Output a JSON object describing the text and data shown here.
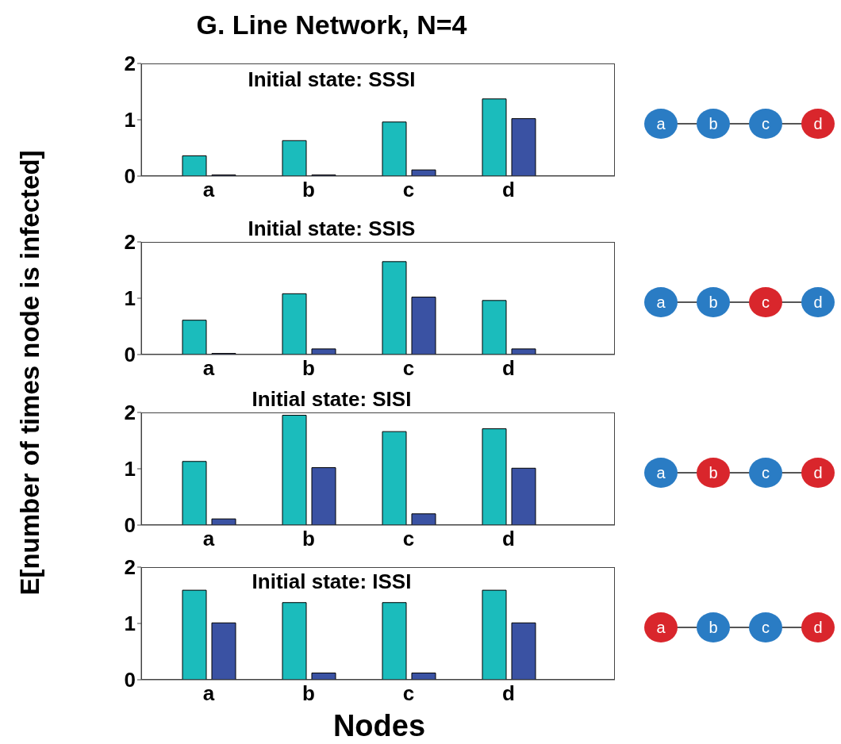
{
  "chart_data": [
    {
      "type": "bar",
      "title": "Initial state: SSSI",
      "annotations": [
        "G. Line Network, N=4"
      ],
      "ylabel": "E[number of times node is infected]",
      "categories": [
        "a",
        "b",
        "c",
        "d"
      ],
      "ylim": [
        0,
        2
      ],
      "yticks": [
        0,
        1,
        2
      ],
      "grid": false,
      "series": [
        {
          "color": "#1bbcbc",
          "values": [
            0.36,
            0.63,
            0.96,
            1.37
          ]
        },
        {
          "color": "#3a52a3",
          "values": [
            0.02,
            0.02,
            0.11,
            1.02
          ]
        }
      ]
    },
    {
      "type": "bar",
      "title": "Initial state: SSIS",
      "categories": [
        "a",
        "b",
        "c",
        "d"
      ],
      "ylim": [
        0,
        2
      ],
      "yticks": [
        0,
        1,
        2
      ],
      "grid": false,
      "series": [
        {
          "color": "#1bbcbc",
          "values": [
            0.61,
            1.08,
            1.65,
            0.96
          ]
        },
        {
          "color": "#3a52a3",
          "values": [
            0.02,
            0.1,
            1.02,
            0.1
          ]
        }
      ]
    },
    {
      "type": "bar",
      "title": "Initial state: SISI",
      "categories": [
        "a",
        "b",
        "c",
        "d"
      ],
      "ylim": [
        0,
        2
      ],
      "yticks": [
        0,
        1,
        2
      ],
      "grid": false,
      "series": [
        {
          "color": "#1bbcbc",
          "values": [
            1.13,
            1.95,
            1.66,
            1.71
          ]
        },
        {
          "color": "#3a52a3",
          "values": [
            0.11,
            1.02,
            0.2,
            1.01
          ]
        }
      ]
    },
    {
      "type": "bar",
      "title": "Initial state: ISSI",
      "xlabel": "Nodes",
      "categories": [
        "a",
        "b",
        "c",
        "d"
      ],
      "ylim": [
        0,
        2
      ],
      "yticks": [
        0,
        1,
        2
      ],
      "grid": false,
      "series": [
        {
          "color": "#1bbcbc",
          "values": [
            1.59,
            1.37,
            1.37,
            1.59
          ]
        },
        {
          "color": "#3a52a3",
          "values": [
            1.01,
            0.12,
            0.12,
            1.01
          ]
        }
      ]
    }
  ]
}
